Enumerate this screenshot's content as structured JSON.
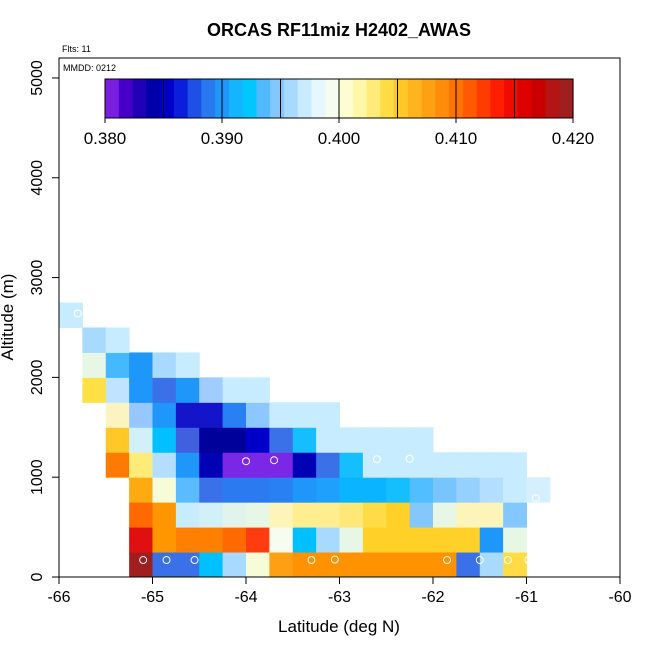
{
  "chart_data": {
    "type": "heatmap",
    "title": "ORCAS RF11miz H2402_AWAS",
    "xlabel": "Latitude (deg N)",
    "ylabel": "Altitude (m)",
    "xlim": [
      -66,
      -60
    ],
    "ylim": [
      0,
      5200
    ],
    "xticks": [
      -66,
      -65,
      -64,
      -63,
      -62,
      -61,
      -60
    ],
    "yticks": [
      0,
      1000,
      2000,
      3000,
      4000,
      5000
    ],
    "annotations": {
      "flights": "Flts: 11",
      "date": "MMDD: 0212"
    },
    "colorbar": {
      "range": [
        0.38,
        0.42
      ],
      "ticks": [
        0.38,
        0.39,
        0.4,
        0.41,
        0.42
      ],
      "tick_labels": [
        "0.380",
        "0.390",
        "0.400",
        "0.410",
        "0.420"
      ],
      "segment_colors": [
        "#7A1FE0",
        "#4600C8",
        "#2000B4",
        "#0000AA",
        "#0000C8",
        "#0A1EDC",
        "#1E50E6",
        "#2878EE",
        "#1E96FA",
        "#14B4FF",
        "#00C8FF",
        "#50B9FF",
        "#82C8FF",
        "#A8DAFF",
        "#C8ECFF",
        "#E6F7FF",
        "#F7FCF0",
        "#FCFDD0",
        "#FFF7A8",
        "#FFEB78",
        "#FFDC46",
        "#FFC828",
        "#FFB41E",
        "#FFA014",
        "#FF8C0A",
        "#FF7300",
        "#FF5A00",
        "#FF3C00",
        "#FF1E00",
        "#F00A00",
        "#DC0000",
        "#C80000",
        "#B41414",
        "#A01E1E"
      ]
    },
    "bin_width_deg": 0.25,
    "bin_height_m": 250,
    "cells": [
      {
        "lat": -65.25,
        "alt": 0,
        "value": 0.42,
        "color": "#A01E1E"
      },
      {
        "lat": -65.0,
        "alt": 0,
        "value": 0.391,
        "color": "#3A70E8"
      },
      {
        "lat": -64.75,
        "alt": 0,
        "value": 0.391,
        "color": "#3A70E8"
      },
      {
        "lat": -64.5,
        "alt": 0,
        "value": 0.394,
        "color": "#00C0FF"
      },
      {
        "lat": -64.25,
        "alt": 0,
        "value": 0.398,
        "color": "#A8DAFF"
      },
      {
        "lat": -64.0,
        "alt": 0,
        "value": 0.401,
        "color": "#F7FCD8"
      },
      {
        "lat": -63.75,
        "alt": 0,
        "value": 0.409,
        "color": "#FFA014"
      },
      {
        "lat": -63.5,
        "alt": 0,
        "value": 0.409,
        "color": "#FF9200"
      },
      {
        "lat": -63.25,
        "alt": 0,
        "value": 0.409,
        "color": "#FF9200"
      },
      {
        "lat": -63.0,
        "alt": 0,
        "value": 0.409,
        "color": "#FF9200"
      },
      {
        "lat": -62.75,
        "alt": 0,
        "value": 0.409,
        "color": "#FF9200"
      },
      {
        "lat": -62.5,
        "alt": 0,
        "value": 0.409,
        "color": "#FF9200"
      },
      {
        "lat": -62.25,
        "alt": 0,
        "value": 0.409,
        "color": "#FF9200"
      },
      {
        "lat": -62.0,
        "alt": 0,
        "value": 0.409,
        "color": "#FF9200"
      },
      {
        "lat": -61.75,
        "alt": 0,
        "value": 0.391,
        "color": "#3A70E8"
      },
      {
        "lat": -61.5,
        "alt": 0,
        "value": 0.398,
        "color": "#A8DAFF"
      },
      {
        "lat": -61.25,
        "alt": 0,
        "value": 0.405,
        "color": "#FFDC46"
      },
      {
        "lat": -65.25,
        "alt": 250,
        "value": 0.416,
        "color": "#E01010"
      },
      {
        "lat": -65.0,
        "alt": 250,
        "value": 0.409,
        "color": "#FF9600"
      },
      {
        "lat": -64.75,
        "alt": 250,
        "value": 0.41,
        "color": "#FF8000"
      },
      {
        "lat": -64.5,
        "alt": 250,
        "value": 0.41,
        "color": "#FF8000"
      },
      {
        "lat": -64.25,
        "alt": 250,
        "value": 0.411,
        "color": "#FF6A00"
      },
      {
        "lat": -64.0,
        "alt": 250,
        "value": 0.413,
        "color": "#FF3C10"
      },
      {
        "lat": -63.75,
        "alt": 250,
        "value": 0.4,
        "color": "#F7FCF0"
      },
      {
        "lat": -63.5,
        "alt": 250,
        "value": 0.394,
        "color": "#00C0FF"
      },
      {
        "lat": -63.25,
        "alt": 250,
        "value": 0.398,
        "color": "#A8DAFF"
      },
      {
        "lat": -63.0,
        "alt": 250,
        "value": 0.4,
        "color": "#E6F7E6"
      },
      {
        "lat": -62.75,
        "alt": 250,
        "value": 0.406,
        "color": "#FFD028"
      },
      {
        "lat": -62.5,
        "alt": 250,
        "value": 0.406,
        "color": "#FFD028"
      },
      {
        "lat": -62.25,
        "alt": 250,
        "value": 0.406,
        "color": "#FFD028"
      },
      {
        "lat": -62.0,
        "alt": 250,
        "value": 0.406,
        "color": "#FFD028"
      },
      {
        "lat": -61.75,
        "alt": 250,
        "value": 0.406,
        "color": "#FFD028"
      },
      {
        "lat": -61.5,
        "alt": 250,
        "value": 0.393,
        "color": "#1E96FA"
      },
      {
        "lat": -61.25,
        "alt": 250,
        "value": 0.4,
        "color": "#E6F7E6"
      },
      {
        "lat": -65.25,
        "alt": 500,
        "value": 0.411,
        "color": "#FF6A00"
      },
      {
        "lat": -65.0,
        "alt": 500,
        "value": 0.409,
        "color": "#FF9600"
      },
      {
        "lat": -64.75,
        "alt": 500,
        "value": 0.399,
        "color": "#C8ECFF"
      },
      {
        "lat": -64.5,
        "alt": 500,
        "value": 0.399,
        "color": "#D2F0F8"
      },
      {
        "lat": -64.25,
        "alt": 500,
        "value": 0.4,
        "color": "#E0F4EC"
      },
      {
        "lat": -64.0,
        "alt": 500,
        "value": 0.4,
        "color": "#E6F7E6"
      },
      {
        "lat": -63.75,
        "alt": 500,
        "value": 0.402,
        "color": "#FCF4B8"
      },
      {
        "lat": -63.5,
        "alt": 500,
        "value": 0.403,
        "color": "#FFEE90"
      },
      {
        "lat": -63.25,
        "alt": 500,
        "value": 0.403,
        "color": "#FFEE90"
      },
      {
        "lat": -63.0,
        "alt": 500,
        "value": 0.404,
        "color": "#FFE878"
      },
      {
        "lat": -62.75,
        "alt": 500,
        "value": 0.405,
        "color": "#FFDC46"
      },
      {
        "lat": -62.5,
        "alt": 500,
        "value": 0.406,
        "color": "#FFD028"
      },
      {
        "lat": -62.25,
        "alt": 500,
        "value": 0.396,
        "color": "#82C8FF"
      },
      {
        "lat": -62.0,
        "alt": 500,
        "value": 0.4,
        "color": "#E6F7E6"
      },
      {
        "lat": -61.75,
        "alt": 500,
        "value": 0.402,
        "color": "#FCF4B8"
      },
      {
        "lat": -61.5,
        "alt": 500,
        "value": 0.402,
        "color": "#FCF4B8"
      },
      {
        "lat": -61.25,
        "alt": 500,
        "value": 0.396,
        "color": "#82C8FF"
      },
      {
        "lat": -65.25,
        "alt": 750,
        "value": 0.408,
        "color": "#FFAA10"
      },
      {
        "lat": -65.0,
        "alt": 750,
        "value": 0.401,
        "color": "#F7FCD8"
      },
      {
        "lat": -64.75,
        "alt": 750,
        "value": 0.395,
        "color": "#5ABCFF"
      },
      {
        "lat": -64.5,
        "alt": 750,
        "value": 0.391,
        "color": "#3A70E8"
      },
      {
        "lat": -64.25,
        "alt": 750,
        "value": 0.391,
        "color": "#2C7AF0"
      },
      {
        "lat": -64.0,
        "alt": 750,
        "value": 0.391,
        "color": "#2C7AF0"
      },
      {
        "lat": -63.75,
        "alt": 750,
        "value": 0.392,
        "color": "#2880F2"
      },
      {
        "lat": -63.5,
        "alt": 750,
        "value": 0.393,
        "color": "#1E96FA"
      },
      {
        "lat": -63.25,
        "alt": 750,
        "value": 0.393,
        "color": "#1EA0FC"
      },
      {
        "lat": -63.0,
        "alt": 750,
        "value": 0.394,
        "color": "#0AB4FF"
      },
      {
        "lat": -62.75,
        "alt": 750,
        "value": 0.394,
        "color": "#0AB4FF"
      },
      {
        "lat": -62.5,
        "alt": 750,
        "value": 0.394,
        "color": "#14BEFF"
      },
      {
        "lat": -62.25,
        "alt": 750,
        "value": 0.395,
        "color": "#50BEFF"
      },
      {
        "lat": -62.0,
        "alt": 750,
        "value": 0.396,
        "color": "#78C4FF"
      },
      {
        "lat": -61.75,
        "alt": 750,
        "value": 0.397,
        "color": "#96D0FF"
      },
      {
        "lat": -61.5,
        "alt": 750,
        "value": 0.398,
        "color": "#B4DEFF"
      },
      {
        "lat": -61.25,
        "alt": 750,
        "value": 0.399,
        "color": "#C8ECFF"
      },
      {
        "lat": -61.0,
        "alt": 750,
        "value": 0.399,
        "color": "#D4F0FF"
      },
      {
        "lat": -65.5,
        "alt": 1000,
        "value": 0.41,
        "color": "#FF7A00"
      },
      {
        "lat": -65.25,
        "alt": 1000,
        "value": 0.404,
        "color": "#FFEC78"
      },
      {
        "lat": -65.0,
        "alt": 1000,
        "value": 0.398,
        "color": "#B4DEFF"
      },
      {
        "lat": -64.75,
        "alt": 1000,
        "value": 0.393,
        "color": "#1E96FA"
      },
      {
        "lat": -64.5,
        "alt": 1000,
        "value": 0.385,
        "color": "#0000B4"
      },
      {
        "lat": -64.25,
        "alt": 1000,
        "value": 0.381,
        "color": "#7A28E6"
      },
      {
        "lat": -64.0,
        "alt": 1000,
        "value": 0.381,
        "color": "#7A28E6"
      },
      {
        "lat": -63.75,
        "alt": 1000,
        "value": 0.381,
        "color": "#7A28E6"
      },
      {
        "lat": -63.5,
        "alt": 1000,
        "value": 0.385,
        "color": "#0000B4"
      },
      {
        "lat": -63.25,
        "alt": 1000,
        "value": 0.391,
        "color": "#3A70E8"
      },
      {
        "lat": -63.0,
        "alt": 1000,
        "value": 0.394,
        "color": "#14BEFF"
      },
      {
        "lat": -62.75,
        "alt": 1000,
        "value": 0.399,
        "color": "#C8ECFF"
      },
      {
        "lat": -62.5,
        "alt": 1000,
        "value": 0.399,
        "color": "#C8ECFF"
      },
      {
        "lat": -62.25,
        "alt": 1000,
        "value": 0.399,
        "color": "#C8ECFF"
      },
      {
        "lat": -62.0,
        "alt": 1000,
        "value": 0.399,
        "color": "#C8ECFF"
      },
      {
        "lat": -61.75,
        "alt": 1000,
        "value": 0.399,
        "color": "#C8ECFF"
      },
      {
        "lat": -61.5,
        "alt": 1000,
        "value": 0.399,
        "color": "#C8ECFF"
      },
      {
        "lat": -61.25,
        "alt": 1000,
        "value": 0.399,
        "color": "#C8ECFF"
      },
      {
        "lat": -65.5,
        "alt": 1250,
        "value": 0.406,
        "color": "#FFC828"
      },
      {
        "lat": -65.25,
        "alt": 1250,
        "value": 0.399,
        "color": "#D2F0F8"
      },
      {
        "lat": -65.0,
        "alt": 1250,
        "value": 0.394,
        "color": "#00C0FF"
      },
      {
        "lat": -64.75,
        "alt": 1250,
        "value": 0.389,
        "color": "#4060E0"
      },
      {
        "lat": -64.5,
        "alt": 1250,
        "value": 0.384,
        "color": "#00009A"
      },
      {
        "lat": -64.25,
        "alt": 1250,
        "value": 0.384,
        "color": "#00009A"
      },
      {
        "lat": -64.0,
        "alt": 1250,
        "value": 0.386,
        "color": "#0000C8"
      },
      {
        "lat": -63.75,
        "alt": 1250,
        "value": 0.391,
        "color": "#3A70E8"
      },
      {
        "lat": -63.5,
        "alt": 1250,
        "value": 0.394,
        "color": "#14BEFF"
      },
      {
        "lat": -63.25,
        "alt": 1250,
        "value": 0.399,
        "color": "#C8ECFF"
      },
      {
        "lat": -63.0,
        "alt": 1250,
        "value": 0.399,
        "color": "#C8ECFF"
      },
      {
        "lat": -62.75,
        "alt": 1250,
        "value": 0.399,
        "color": "#C8ECFF"
      },
      {
        "lat": -62.5,
        "alt": 1250,
        "value": 0.399,
        "color": "#C8ECFF"
      },
      {
        "lat": -62.25,
        "alt": 1250,
        "value": 0.399,
        "color": "#C8ECFF"
      },
      {
        "lat": -65.5,
        "alt": 1500,
        "value": 0.402,
        "color": "#FCF4C0"
      },
      {
        "lat": -65.25,
        "alt": 1500,
        "value": 0.396,
        "color": "#96C8FF"
      },
      {
        "lat": -65.0,
        "alt": 1500,
        "value": 0.393,
        "color": "#1E96FA"
      },
      {
        "lat": -64.75,
        "alt": 1500,
        "value": 0.385,
        "color": "#1414C8"
      },
      {
        "lat": -64.5,
        "alt": 1500,
        "value": 0.385,
        "color": "#1414C8"
      },
      {
        "lat": -64.25,
        "alt": 1500,
        "value": 0.392,
        "color": "#2880F2"
      },
      {
        "lat": -64.0,
        "alt": 1500,
        "value": 0.396,
        "color": "#8CC8FF"
      },
      {
        "lat": -63.75,
        "alt": 1500,
        "value": 0.399,
        "color": "#C8ECFF"
      },
      {
        "lat": -63.5,
        "alt": 1500,
        "value": 0.399,
        "color": "#C8ECFF"
      },
      {
        "lat": -63.25,
        "alt": 1500,
        "value": 0.399,
        "color": "#C8ECFF"
      },
      {
        "lat": -65.75,
        "alt": 1750,
        "value": 0.405,
        "color": "#FFE044"
      },
      {
        "lat": -65.5,
        "alt": 1750,
        "value": 0.398,
        "color": "#C0E4FF"
      },
      {
        "lat": -65.25,
        "alt": 1750,
        "value": 0.393,
        "color": "#1E96FA"
      },
      {
        "lat": -65.0,
        "alt": 1750,
        "value": 0.391,
        "color": "#3A70E8"
      },
      {
        "lat": -64.75,
        "alt": 1750,
        "value": 0.393,
        "color": "#1E96FA"
      },
      {
        "lat": -64.5,
        "alt": 1750,
        "value": 0.397,
        "color": "#A0CCFF"
      },
      {
        "lat": -64.25,
        "alt": 1750,
        "value": 0.399,
        "color": "#C8ECFF"
      },
      {
        "lat": -64.0,
        "alt": 1750,
        "value": 0.399,
        "color": "#C8ECFF"
      },
      {
        "lat": -65.75,
        "alt": 2000,
        "value": 0.4,
        "color": "#E6F7E6"
      },
      {
        "lat": -65.5,
        "alt": 2000,
        "value": 0.395,
        "color": "#46B8FF"
      },
      {
        "lat": -65.25,
        "alt": 2000,
        "value": 0.393,
        "color": "#1E96FA"
      },
      {
        "lat": -65.0,
        "alt": 2000,
        "value": 0.397,
        "color": "#A8DAFF"
      },
      {
        "lat": -64.75,
        "alt": 2000,
        "value": 0.399,
        "color": "#C8ECFF"
      },
      {
        "lat": -65.75,
        "alt": 2250,
        "value": 0.398,
        "color": "#A8DAFF"
      },
      {
        "lat": -65.5,
        "alt": 2250,
        "value": 0.399,
        "color": "#C8ECFF"
      },
      {
        "lat": -66.0,
        "alt": 2500,
        "value": 0.399,
        "color": "#C8ECFF"
      }
    ],
    "sample_points": [
      {
        "lat": -65.1,
        "alt": 170
      },
      {
        "lat": -64.85,
        "alt": 170
      },
      {
        "lat": -64.55,
        "alt": 170
      },
      {
        "lat": -63.3,
        "alt": 170
      },
      {
        "lat": -63.05,
        "alt": 175
      },
      {
        "lat": -61.85,
        "alt": 170
      },
      {
        "lat": -61.5,
        "alt": 170
      },
      {
        "lat": -61.2,
        "alt": 170
      },
      {
        "lat": -60.98,
        "alt": 170
      },
      {
        "lat": -64.0,
        "alt": 1160
      },
      {
        "lat": -63.7,
        "alt": 1170
      },
      {
        "lat": -62.6,
        "alt": 1180
      },
      {
        "lat": -62.25,
        "alt": 1185
      },
      {
        "lat": -60.9,
        "alt": 790
      },
      {
        "lat": -65.8,
        "alt": 2640
      }
    ]
  }
}
